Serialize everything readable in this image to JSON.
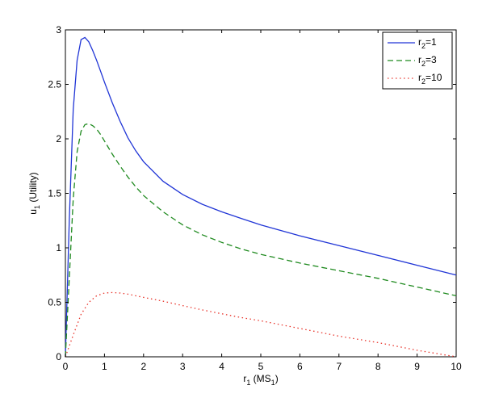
{
  "chart_data": {
    "type": "line",
    "title": "",
    "xlabel": {
      "main": "r",
      "sub": "1",
      "middle": " (MS",
      "sub2": "1",
      "end": ")"
    },
    "ylabel": {
      "main": "u",
      "sub": "1",
      "end": " (Utility)"
    },
    "xlim": [
      0,
      10
    ],
    "ylim": [
      0,
      3
    ],
    "xticks": [
      0,
      1,
      2,
      3,
      4,
      5,
      6,
      7,
      8,
      9,
      10
    ],
    "yticks": [
      0,
      0.5,
      1,
      1.5,
      2,
      2.5,
      3
    ],
    "ytick_labels": [
      "0",
      "0.5",
      "1",
      "1.5",
      "2",
      "2.5",
      "3"
    ],
    "grid": false,
    "legend_position": "top-right",
    "series": [
      {
        "name": "r2=1",
        "legend": {
          "main": "r",
          "sub": "2",
          "end": "=1"
        },
        "color": "#2035d6",
        "style": "solid",
        "x": [
          0,
          0.1,
          0.2,
          0.3,
          0.4,
          0.5,
          0.6,
          0.7,
          0.8,
          0.9,
          1.0,
          1.2,
          1.4,
          1.6,
          1.8,
          2.0,
          2.5,
          3.0,
          3.5,
          4.0,
          4.5,
          5.0,
          6.0,
          7.0,
          8.0,
          9.0,
          10.0
        ],
        "y": [
          0,
          1.25,
          2.27,
          2.72,
          2.91,
          2.93,
          2.89,
          2.81,
          2.72,
          2.62,
          2.52,
          2.33,
          2.16,
          2.01,
          1.89,
          1.79,
          1.61,
          1.49,
          1.4,
          1.33,
          1.27,
          1.21,
          1.11,
          1.02,
          0.93,
          0.84,
          0.75
        ]
      },
      {
        "name": "r2=3",
        "legend": {
          "main": "r",
          "sub": "2",
          "end": "=3"
        },
        "color": "#1f8a1f",
        "style": "dashed",
        "x": [
          0,
          0.1,
          0.2,
          0.3,
          0.4,
          0.5,
          0.6,
          0.7,
          0.8,
          0.9,
          1.0,
          1.2,
          1.4,
          1.6,
          1.8,
          2.0,
          2.5,
          3.0,
          3.5,
          4.0,
          4.5,
          5.0,
          6.0,
          7.0,
          8.0,
          9.0,
          10.0
        ],
        "y": [
          0,
          0.72,
          1.45,
          1.88,
          2.07,
          2.13,
          2.14,
          2.12,
          2.09,
          2.04,
          1.98,
          1.86,
          1.75,
          1.65,
          1.56,
          1.48,
          1.33,
          1.21,
          1.12,
          1.05,
          0.99,
          0.94,
          0.86,
          0.79,
          0.72,
          0.64,
          0.56
        ]
      },
      {
        "name": "r2=10",
        "legend": {
          "main": "r",
          "sub": "2",
          "end": "=10"
        },
        "color": "#e8332a",
        "style": "dotted",
        "x": [
          0,
          0.2,
          0.4,
          0.6,
          0.8,
          1.0,
          1.2,
          1.4,
          1.6,
          1.8,
          2.0,
          2.5,
          3.0,
          3.5,
          4.0,
          4.5,
          5.0,
          6.0,
          7.0,
          8.0,
          9.0,
          10.0
        ],
        "y": [
          0,
          0.2,
          0.39,
          0.5,
          0.56,
          0.585,
          0.59,
          0.585,
          0.575,
          0.56,
          0.545,
          0.51,
          0.47,
          0.43,
          0.395,
          0.36,
          0.33,
          0.26,
          0.19,
          0.13,
          0.06,
          0.0
        ]
      }
    ]
  }
}
